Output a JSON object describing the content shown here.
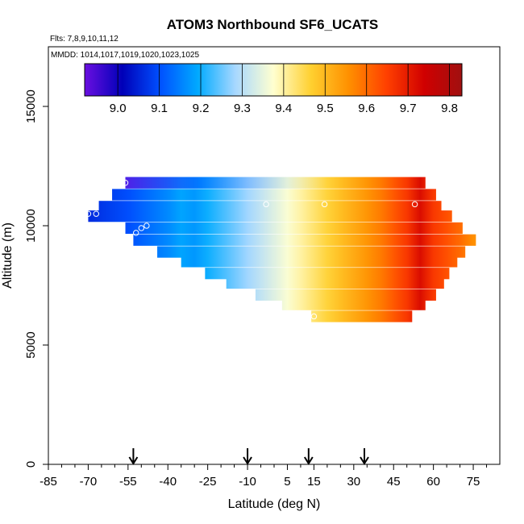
{
  "chart_data": {
    "type": "heatmap",
    "title": "ATOM3 Northbound SF6_UCATS",
    "flights_label": "Flts: 7,8,9,10,11,12",
    "dates_label": "MMDD: 1014,1017,1019,1020,1023,1025",
    "xlabel": "Latitude (deg N)",
    "ylabel": "Altitude (m)",
    "xlim": [
      -85,
      85
    ],
    "ylim": [
      0,
      17500
    ],
    "x_ticks": [
      -85,
      -70,
      -55,
      -40,
      -25,
      -10,
      5,
      15,
      30,
      45,
      60,
      75
    ],
    "y_ticks": [
      0,
      5000,
      10000,
      15000
    ],
    "colorbar": {
      "min": 8.92,
      "max": 9.83,
      "ticks": [
        9.0,
        9.1,
        9.2,
        9.3,
        9.4,
        9.5,
        9.6,
        9.7,
        9.8
      ],
      "palette": [
        "#6a0fe0",
        "#0000b8",
        "#0050ff",
        "#00aaff",
        "#a8d8ff",
        "#ffffd0",
        "#ffd030",
        "#ff9000",
        "#ff4000",
        "#d00000",
        "#a01010"
      ]
    },
    "profiles": [
      {
        "alt": 11800,
        "lat_min": -56,
        "lat_max": 57
      },
      {
        "alt": 11300,
        "lat_min": -61,
        "lat_max": 61
      },
      {
        "alt": 10800,
        "lat_min": -66,
        "lat_max": 63
      },
      {
        "alt": 10400,
        "lat_min": -70,
        "lat_max": 67
      },
      {
        "alt": 9900,
        "lat_min": -56,
        "lat_max": 71
      },
      {
        "alt": 9400,
        "lat_min": -53,
        "lat_max": 76
      },
      {
        "alt": 8900,
        "lat_min": -44,
        "lat_max": 72
      },
      {
        "alt": 8500,
        "lat_min": -35,
        "lat_max": 69
      },
      {
        "alt": 8000,
        "lat_min": -26,
        "lat_max": 66
      },
      {
        "alt": 7600,
        "lat_min": -18,
        "lat_max": 64
      },
      {
        "alt": 7100,
        "lat_min": -7,
        "lat_max": 61
      },
      {
        "alt": 6700,
        "lat_min": 3,
        "lat_max": 57
      },
      {
        "alt": 6200,
        "lat_min": 14,
        "lat_max": 52
      }
    ],
    "field_points": [
      [
        -70,
        9.02
      ],
      [
        -55,
        9.06
      ],
      [
        -40,
        9.12
      ],
      [
        -25,
        9.2
      ],
      [
        -10,
        9.28
      ],
      [
        0,
        9.34
      ],
      [
        10,
        9.4
      ],
      [
        20,
        9.46
      ],
      [
        30,
        9.52
      ],
      [
        40,
        9.58
      ],
      [
        50,
        9.66
      ],
      [
        55,
        9.72
      ],
      [
        60,
        9.66
      ],
      [
        70,
        9.6
      ],
      [
        76,
        9.55
      ]
    ],
    "obs_points": [
      {
        "lat": -56,
        "alt": 11800
      },
      {
        "lat": -67,
        "alt": 10500
      },
      {
        "lat": -70,
        "alt": 10500
      },
      {
        "lat": -48,
        "alt": 10000
      },
      {
        "lat": -50,
        "alt": 9900
      },
      {
        "lat": -52,
        "alt": 9700
      },
      {
        "lat": -3,
        "alt": 10900
      },
      {
        "lat": 19,
        "alt": 10900
      },
      {
        "lat": 53,
        "alt": 10900
      },
      {
        "lat": 15,
        "alt": 6200
      }
    ],
    "arrows_lat": [
      -53,
      -10,
      13,
      34
    ]
  }
}
